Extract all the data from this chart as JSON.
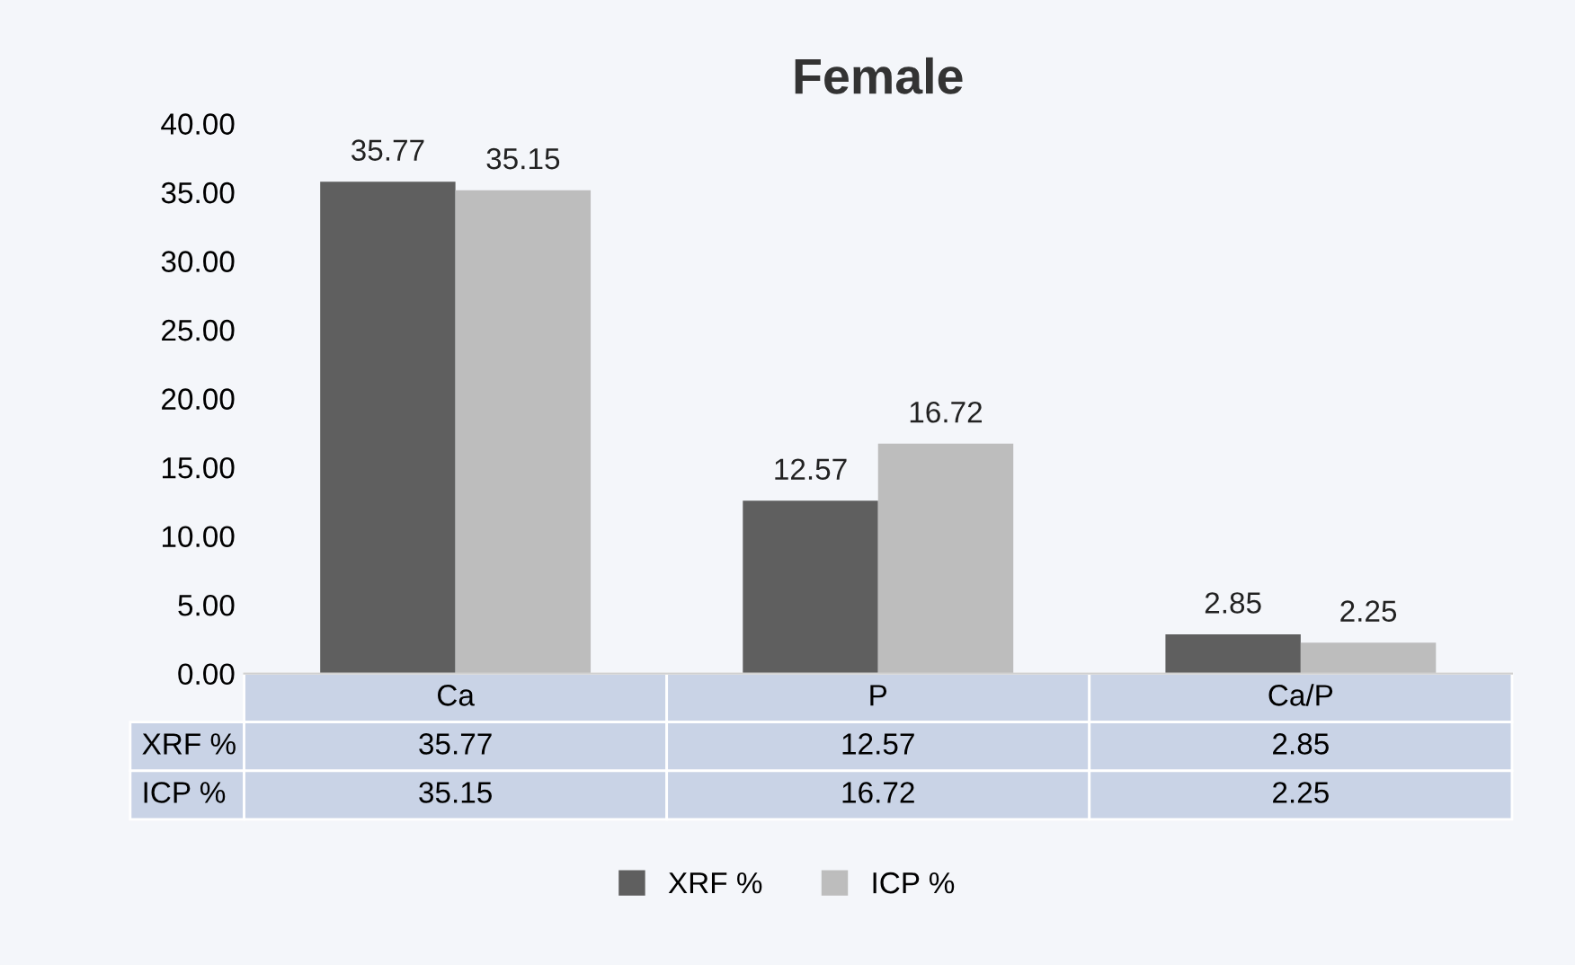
{
  "chart_data": {
    "type": "bar",
    "title": "Female",
    "categories": [
      "Ca",
      "P",
      "Ca/P"
    ],
    "series": [
      {
        "name": "XRF %",
        "color": "#5f5f5f",
        "values": [
          35.77,
          12.57,
          2.85
        ],
        "value_labels": [
          "35.77",
          "12.57",
          "2.85"
        ]
      },
      {
        "name": "ICP %",
        "color": "#bdbdbd",
        "values": [
          35.15,
          16.72,
          2.25
        ],
        "value_labels": [
          "35.15",
          "16.72",
          "2.25"
        ]
      }
    ],
    "ylim": [
      0,
      40
    ],
    "yticks": [
      {
        "value": 0,
        "label": "0.00"
      },
      {
        "value": 5,
        "label": "5.00"
      },
      {
        "value": 10,
        "label": "10.00"
      },
      {
        "value": 15,
        "label": "15.00"
      },
      {
        "value": 20,
        "label": "20.00"
      },
      {
        "value": 25,
        "label": "25.00"
      },
      {
        "value": 30,
        "label": "30.00"
      },
      {
        "value": 35,
        "label": "35.00"
      },
      {
        "value": 40,
        "label": "40.00"
      }
    ],
    "legend": "bottom",
    "grid": false
  }
}
